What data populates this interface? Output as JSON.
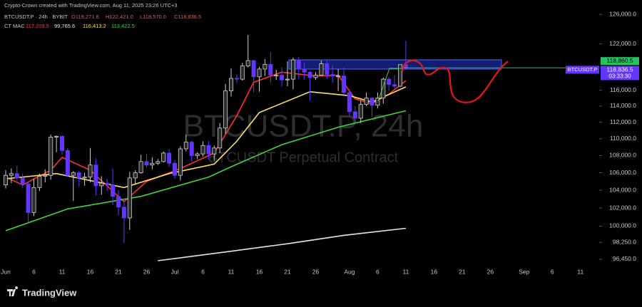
{
  "chart_data": {
    "type": "candlestick",
    "credit": "Crypto-Crown created with TradingView.com, Aug 11, 2025 23:26 UTC+3",
    "symbol": "BTCUSDT.P · 24h · BYBIT",
    "ohlc_labels": [
      "O119,271.8",
      "H122,421.0",
      "L118,570.0",
      "C118,836.5"
    ],
    "watermark": "BTCUSDT.P, 24h",
    "watermark_subtitle": "BTCUSDT Perpetual Contract",
    "brand": "TradingView",
    "log_scale": true,
    "up_color": "#2b2b2b",
    "up_border": "#cfcfcf",
    "down_color": "#6236ff",
    "ylim": [
      96000,
      127000
    ],
    "yticks": [
      {
        "value": 126000,
        "label": "126,000.0"
      },
      {
        "value": 122000,
        "label": "122,000.0"
      },
      {
        "value": 116000,
        "label": "116,000.0"
      },
      {
        "value": 114000,
        "label": "114,000.0"
      },
      {
        "value": 112000,
        "label": "112,000.0"
      },
      {
        "value": 110000,
        "label": "110,000.0"
      },
      {
        "value": 108000,
        "label": "108,000.0"
      },
      {
        "value": 106000,
        "label": "106,000.0"
      },
      {
        "value": 104000,
        "label": "104,000.0"
      },
      {
        "value": 102000,
        "label": "102,000.0"
      },
      {
        "value": 100000,
        "label": "100,000.0"
      },
      {
        "value": 98250,
        "label": "98,250.0"
      },
      {
        "value": 96450,
        "label": "96,450.0"
      }
    ],
    "xticks": [
      {
        "value": "Jun 1",
        "label": "Jun"
      },
      {
        "value": "Jun 6",
        "label": "6"
      },
      {
        "value": "Jun 11",
        "label": "11"
      },
      {
        "value": "Jun 16",
        "label": "16"
      },
      {
        "value": "Jun 21",
        "label": "21"
      },
      {
        "value": "Jun 26",
        "label": "26"
      },
      {
        "value": "Jul 1",
        "label": "Jul"
      },
      {
        "value": "Jul 6",
        "label": "6"
      },
      {
        "value": "Jul 11",
        "label": "11"
      },
      {
        "value": "Jul 16",
        "label": "16"
      },
      {
        "value": "Jul 21",
        "label": "21"
      },
      {
        "value": "Jul 26",
        "label": "26"
      },
      {
        "value": "Aug 1",
        "label": "Aug"
      },
      {
        "value": "Aug 6",
        "label": "6"
      },
      {
        "value": "Aug 11",
        "label": "11"
      },
      {
        "value": "Aug 16",
        "label": "16"
      },
      {
        "value": "Aug 21",
        "label": "21"
      },
      {
        "value": "Aug 26",
        "label": "26"
      },
      {
        "value": "Sep 1",
        "label": "Sep"
      },
      {
        "value": "Sep 6",
        "label": "6"
      },
      {
        "value": "Sep 11",
        "label": "11"
      }
    ],
    "x": [
      "Jun 1",
      "Jun 2",
      "Jun 3",
      "Jun 4",
      "Jun 5",
      "Jun 6",
      "Jun 7",
      "Jun 8",
      "Jun 9",
      "Jun 10",
      "Jun 11",
      "Jun 12",
      "Jun 13",
      "Jun 14",
      "Jun 15",
      "Jun 16",
      "Jun 17",
      "Jun 18",
      "Jun 19",
      "Jun 20",
      "Jun 21",
      "Jun 22",
      "Jun 23",
      "Jun 24",
      "Jun 25",
      "Jun 26",
      "Jun 27",
      "Jun 28",
      "Jun 29",
      "Jun 30",
      "Jul 1",
      "Jul 2",
      "Jul 3",
      "Jul 4",
      "Jul 5",
      "Jul 6",
      "Jul 7",
      "Jul 8",
      "Jul 9",
      "Jul 10",
      "Jul 11",
      "Jul 12",
      "Jul 13",
      "Jul 14",
      "Jul 15",
      "Jul 16",
      "Jul 17",
      "Jul 18",
      "Jul 19",
      "Jul 20",
      "Jul 21",
      "Jul 22",
      "Jul 23",
      "Jul 24",
      "Jul 25",
      "Jul 26",
      "Jul 27",
      "Jul 28",
      "Jul 29",
      "Jul 30",
      "Jul 31",
      "Aug 1",
      "Aug 2",
      "Aug 3",
      "Aug 4",
      "Aug 5",
      "Aug 6",
      "Aug 7",
      "Aug 8",
      "Aug 9",
      "Aug 10",
      "Aug 11"
    ],
    "ohlc": [
      [
        104600,
        106300,
        104200,
        105700
      ],
      [
        105700,
        106500,
        104800,
        105900
      ],
      [
        105900,
        106800,
        105100,
        105400
      ],
      [
        105400,
        105900,
        104200,
        104700
      ],
      [
        104700,
        105000,
        100400,
        101500
      ],
      [
        101500,
        105300,
        101100,
        104300
      ],
      [
        104300,
        105900,
        103900,
        105600
      ],
      [
        105600,
        106400,
        104900,
        105700
      ],
      [
        105700,
        110500,
        105200,
        110200
      ],
      [
        110200,
        110400,
        108400,
        110300
      ],
      [
        110300,
        110400,
        108100,
        108600
      ],
      [
        108600,
        108900,
        105500,
        105700
      ],
      [
        105700,
        106200,
        102800,
        106000
      ],
      [
        106000,
        106200,
        104400,
        105400
      ],
      [
        105400,
        106000,
        104500,
        105500
      ],
      [
        105500,
        108900,
        104900,
        106900
      ],
      [
        106900,
        107700,
        103400,
        104500
      ],
      [
        104500,
        105600,
        103500,
        104800
      ],
      [
        104800,
        105300,
        103900,
        104600
      ],
      [
        104600,
        106500,
        102300,
        103300
      ],
      [
        103300,
        104000,
        101200,
        102100
      ],
      [
        102100,
        103100,
        98200,
        100900
      ],
      [
        100900,
        106100,
        99600,
        105400
      ],
      [
        105400,
        106300,
        104600,
        106000
      ],
      [
        106000,
        108100,
        105900,
        107300
      ],
      [
        107300,
        108200,
        106600,
        106900
      ],
      [
        106900,
        107800,
        106400,
        107100
      ],
      [
        107100,
        107600,
        106900,
        107300
      ],
      [
        107300,
        108500,
        107200,
        108300
      ],
      [
        108300,
        108800,
        106700,
        107100
      ],
      [
        107100,
        107500,
        105300,
        105700
      ],
      [
        105700,
        109100,
        105100,
        108800
      ],
      [
        108800,
        110500,
        108500,
        109600
      ],
      [
        109600,
        109800,
        107300,
        108000
      ],
      [
        108000,
        108400,
        107600,
        108200
      ],
      [
        108200,
        109700,
        107900,
        109200
      ],
      [
        109200,
        109700,
        107500,
        108200
      ],
      [
        108200,
        109200,
        107400,
        108900
      ],
      [
        108900,
        111900,
        108300,
        111300
      ],
      [
        111300,
        116800,
        110600,
        115900
      ],
      [
        115900,
        118800,
        115200,
        117500
      ],
      [
        117500,
        118000,
        116900,
        117400
      ],
      [
        117400,
        119500,
        117200,
        119100
      ],
      [
        119100,
        123200,
        118900,
        119800
      ],
      [
        119800,
        119900,
        115700,
        117700
      ],
      [
        117700,
        119000,
        115800,
        118700
      ],
      [
        118700,
        120000,
        117800,
        119300
      ],
      [
        119300,
        120900,
        116900,
        117900
      ],
      [
        117900,
        118600,
        117300,
        117900
      ],
      [
        117900,
        118900,
        116500,
        117300
      ],
      [
        117300,
        119700,
        116500,
        117400
      ],
      [
        117400,
        120200,
        116100,
        119900
      ],
      [
        119900,
        120300,
        117400,
        118700
      ],
      [
        118700,
        119500,
        117300,
        118300
      ],
      [
        118300,
        118500,
        114700,
        117600
      ],
      [
        117600,
        118300,
        117300,
        117900
      ],
      [
        117900,
        119800,
        117800,
        119400
      ],
      [
        119400,
        119800,
        117400,
        118000
      ],
      [
        118000,
        119200,
        116900,
        117800
      ],
      [
        117800,
        118700,
        115900,
        117800
      ],
      [
        117800,
        118900,
        115500,
        115700
      ],
      [
        115700,
        116100,
        112700,
        113300
      ],
      [
        113300,
        114000,
        112000,
        112500
      ],
      [
        112500,
        114700,
        111900,
        114200
      ],
      [
        114200,
        115700,
        114000,
        115000
      ],
      [
        115000,
        115100,
        112700,
        114100
      ],
      [
        114100,
        115700,
        113700,
        115000
      ],
      [
        115000,
        117600,
        114300,
        117400
      ],
      [
        117400,
        117700,
        115900,
        116700
      ],
      [
        116700,
        117900,
        116200,
        116500
      ],
      [
        116500,
        119300,
        116400,
        119271.8
      ],
      [
        119271.8,
        122421.0,
        118570.0,
        118836.5
      ]
    ],
    "series": [
      {
        "color": "#ff3030",
        "x": [
          "Jun 1",
          "Jun 4",
          "Jun 9",
          "Jun 11",
          "Jun 16",
          "Jun 22",
          "Jun 26",
          "Jul 2",
          "Jul 8",
          "Jul 12",
          "Jul 15",
          "Jul 20",
          "Jul 26",
          "Jul 30",
          "Aug 2",
          "Aug 5",
          "Aug 8",
          "Aug 11"
        ],
        "values": [
          105500,
          104600,
          106300,
          107800,
          106300,
          102700,
          105000,
          106500,
          108300,
          112800,
          117000,
          118300,
          117800,
          117900,
          114900,
          114300,
          115500,
          117209.5
        ]
      },
      {
        "color": "#e6e6e6",
        "x": [
          "Jun 28",
          "Jul 11",
          "Jul 21",
          "Jul 31",
          "Aug 11"
        ],
        "values": [
          96300,
          97300,
          98100,
          99000,
          99765.6
        ]
      },
      {
        "color": "#ffe066",
        "x": [
          "Jun 1",
          "Jun 10",
          "Jun 22",
          "Jun 30",
          "Jul 8",
          "Jul 12",
          "Jul 16",
          "Jul 25",
          "Aug 1",
          "Aug 5",
          "Aug 11"
        ],
        "values": [
          105300,
          105900,
          104300,
          105900,
          107000,
          109700,
          113200,
          115800,
          115300,
          114500,
          116413.2
        ]
      },
      {
        "color": "#3fd43f",
        "x": [
          "Jun 1",
          "Jun 12",
          "Jun 25",
          "Jul 7",
          "Jul 11",
          "Jul 20",
          "Jul 30",
          "Aug 11"
        ],
        "values": [
          99500,
          101900,
          103300,
          105500,
          106700,
          109300,
          111400,
          113422.5
        ]
      }
    ],
    "indicator": {
      "name": "CT MAC",
      "readouts": [
        "117,209.5",
        "99,765.6",
        "116,413.2",
        "113,422.5"
      ]
    },
    "horizontal_line": {
      "value": 118860.5,
      "label": "118,860.5",
      "color": "#22c55e"
    },
    "last_price": {
      "value": 118836.5,
      "label": "118,836.5",
      "countdown": "03:33:30",
      "symbol": "BTCUSDT.P",
      "color": "#6236ff"
    }
  }
}
